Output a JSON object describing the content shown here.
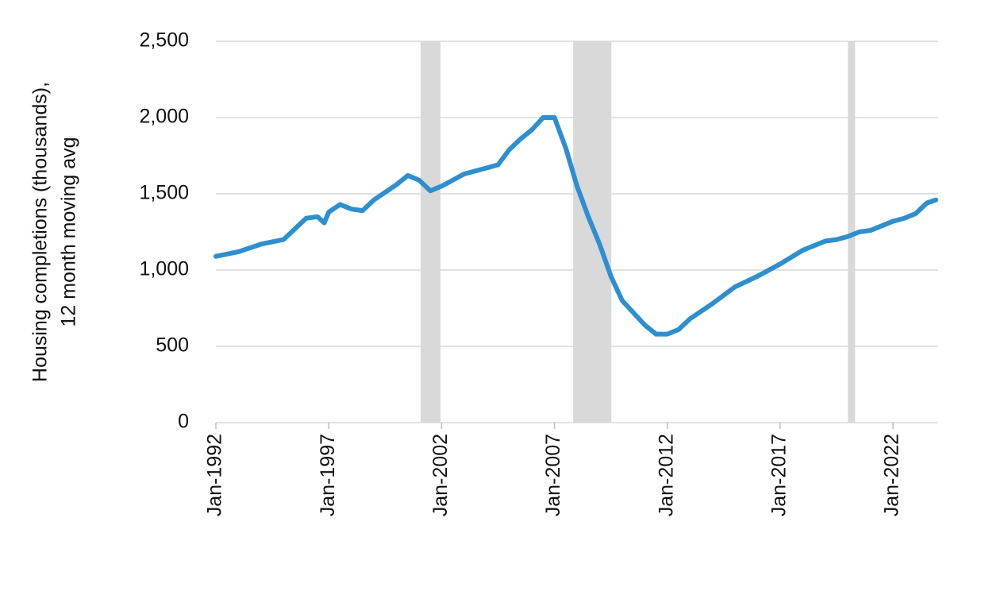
{
  "chart_data": {
    "type": "line",
    "y_label": [
      "Housing completions (thousands),",
      "12 month moving avg"
    ],
    "x": [
      1992,
      1993,
      1994,
      1995,
      1996,
      1996.5,
      1996.8,
      1997,
      1997.5,
      1998,
      1998.5,
      1999,
      2000,
      2000.5,
      2001,
      2001.5,
      2002,
      2003,
      2004,
      2004.5,
      2005,
      2005.5,
      2006,
      2006.5,
      2007,
      2007.5,
      2008,
      2008.5,
      2009,
      2009.5,
      2010,
      2010.5,
      2011,
      2011.5,
      2012,
      2012.5,
      2013,
      2014,
      2015,
      2016,
      2017,
      2018,
      2019,
      2019.5,
      2020,
      2020.5,
      2021,
      2022,
      2022.5,
      2023,
      2023.5,
      2023.9
    ],
    "series": [
      {
        "name": "Housing completions",
        "color": "#2e8fd0",
        "values": [
          1090,
          1120,
          1170,
          1200,
          1340,
          1350,
          1310,
          1380,
          1430,
          1400,
          1390,
          1460,
          1560,
          1620,
          1590,
          1520,
          1550,
          1630,
          1670,
          1690,
          1790,
          1860,
          1920,
          2000,
          2000,
          1800,
          1550,
          1350,
          1170,
          960,
          800,
          720,
          640,
          580,
          580,
          610,
          680,
          780,
          890,
          960,
          1040,
          1130,
          1190,
          1200,
          1220,
          1250,
          1260,
          1320,
          1340,
          1370,
          1440,
          1460
        ]
      }
    ],
    "shaded_regions": [
      [
        2001.07,
        2001.95
      ],
      [
        2007.83,
        2009.52
      ],
      [
        2020.0,
        2020.32
      ]
    ],
    "shade_color": "#d9d9d9",
    "xlim": [
      1992,
      2024
    ],
    "xticks": [
      {
        "value": 1992,
        "label": "Jan-1992"
      },
      {
        "value": 1997,
        "label": "Jan-1997"
      },
      {
        "value": 2002,
        "label": "Jan-2002"
      },
      {
        "value": 2007,
        "label": "Jan-2007"
      },
      {
        "value": 2012,
        "label": "Jan-2012"
      },
      {
        "value": 2017,
        "label": "Jan-2017"
      },
      {
        "value": 2022,
        "label": "Jan-2022"
      }
    ],
    "ylim": [
      0,
      2500
    ],
    "yticks": [
      0,
      500,
      {
        "value": 1000,
        "label": "1,000"
      },
      {
        "value": 1500,
        "label": "1,500"
      },
      {
        "value": 2000,
        "label": "2,000"
      },
      {
        "value": 2500,
        "label": "2,500"
      }
    ],
    "grid": true
  }
}
